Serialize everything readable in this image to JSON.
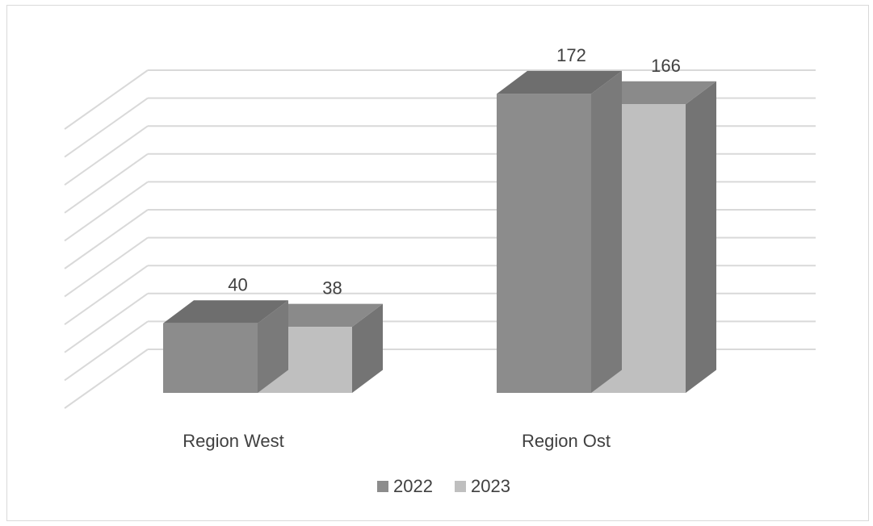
{
  "chart_data": {
    "type": "bar",
    "style": "3d-clustered-column",
    "categories": [
      "Region West",
      "Region Ost"
    ],
    "series": [
      {
        "name": "2022",
        "values": [
          40,
          172
        ],
        "color": "#8c8c8c",
        "top_color": "#6e6e6e",
        "side_color": "#7a7a7a"
      },
      {
        "name": "2023",
        "values": [
          38,
          166
        ],
        "color": "#bfbfbf",
        "top_color": "#8a8a8a",
        "side_color": "#747474"
      }
    ],
    "ylim": [
      0,
      200
    ],
    "grid": true,
    "legend_position": "bottom",
    "gridline_color": "#d9d9d9",
    "label_color": "#404040"
  }
}
